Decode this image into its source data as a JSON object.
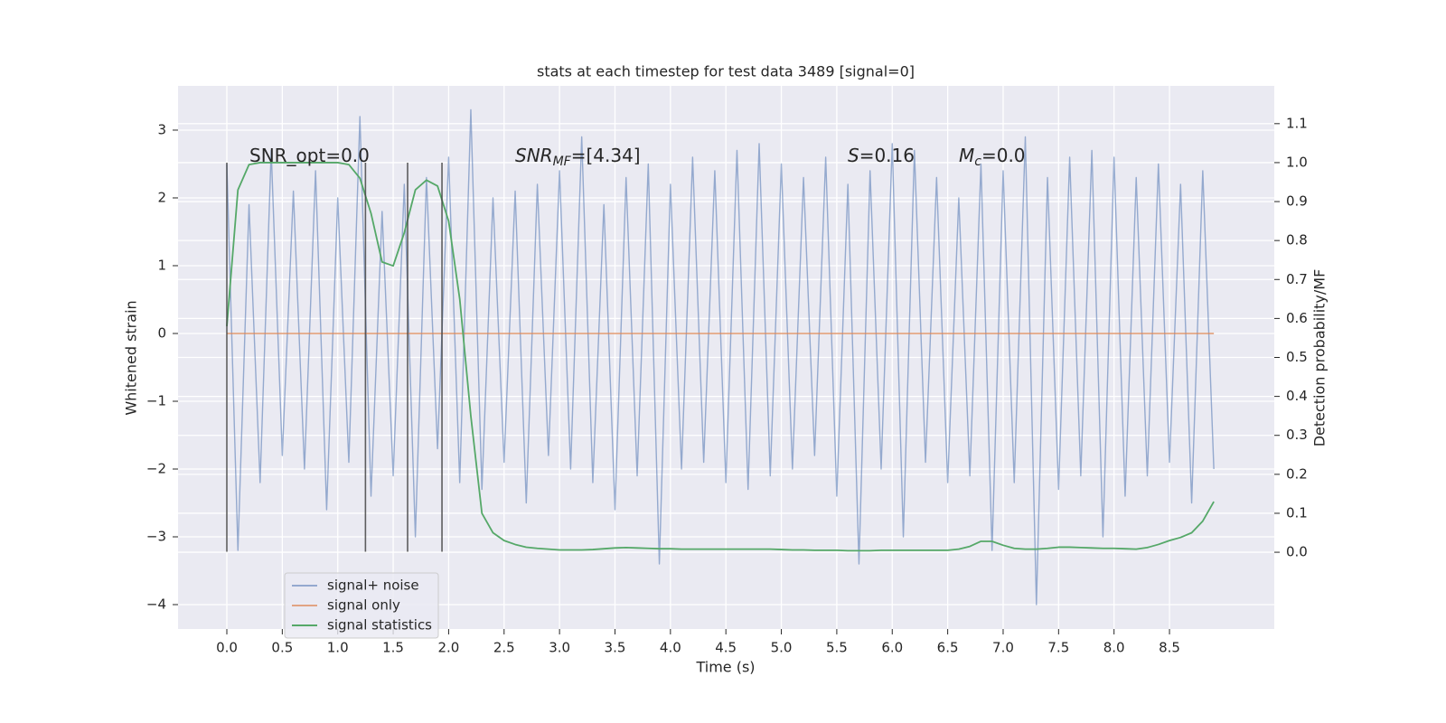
{
  "chart_data": {
    "type": "line",
    "title": "stats at each timestep for test data 3489 [signal=0]",
    "xlabel": "Time (s)",
    "ylabel": "Whitened strain",
    "y2label": "Detection probability/MF",
    "x": [
      0.0,
      0.1,
      0.2,
      0.3,
      0.4,
      0.5,
      0.6,
      0.7,
      0.8,
      0.9,
      1.0,
      1.1,
      1.2,
      1.3,
      1.4,
      1.5,
      1.6,
      1.7,
      1.8,
      1.9,
      2.0,
      2.1,
      2.2,
      2.3,
      2.4,
      2.5,
      2.6,
      2.7,
      2.8,
      2.9,
      3.0,
      3.1,
      3.2,
      3.3,
      3.4,
      3.5,
      3.6,
      3.7,
      3.8,
      3.9,
      4.0,
      4.1,
      4.2,
      4.3,
      4.4,
      4.5,
      4.6,
      4.7,
      4.8,
      4.9,
      5.0,
      5.1,
      5.2,
      5.3,
      5.4,
      5.5,
      5.6,
      5.7,
      5.8,
      5.9,
      6.0,
      6.1,
      6.2,
      6.3,
      6.4,
      6.5,
      6.6,
      6.7,
      6.8,
      6.9,
      7.0,
      7.1,
      7.2,
      7.3,
      7.4,
      7.5,
      7.6,
      7.7,
      7.8,
      7.9,
      8.0,
      8.1,
      8.2,
      8.3,
      8.4,
      8.5,
      8.6,
      8.7,
      8.8,
      8.9
    ],
    "series": [
      {
        "name": "signal+ noise",
        "color": "#4c72b0",
        "values": [
          2.5,
          -3.2,
          1.9,
          -2.2,
          2.7,
          -1.8,
          2.1,
          -2.0,
          2.4,
          -2.6,
          2.0,
          -1.9,
          3.2,
          -2.4,
          1.8,
          -2.1,
          2.2,
          -3.0,
          2.3,
          -1.7,
          2.6,
          -2.2,
          3.3,
          -2.3,
          2.0,
          -1.9,
          2.1,
          -2.5,
          2.2,
          -1.8,
          2.4,
          -2.0,
          2.9,
          -2.2,
          1.9,
          -2.6,
          2.3,
          -2.1,
          2.5,
          -3.4,
          2.2,
          -2.0,
          2.6,
          -1.9,
          2.4,
          -2.2,
          2.7,
          -2.3,
          2.8,
          -2.1,
          2.5,
          -2.0,
          2.3,
          -1.8,
          2.6,
          -2.4,
          2.2,
          -3.4,
          2.4,
          -2.0,
          2.8,
          -3.0,
          2.7,
          -1.9,
          2.3,
          -2.2,
          2.0,
          -2.1,
          2.5,
          -3.2,
          2.4,
          -2.2,
          2.9,
          -4.0,
          2.3,
          -2.3,
          2.6,
          -2.1,
          2.7,
          -3.0,
          2.6,
          -2.4,
          2.3,
          -2.1,
          2.5,
          -1.9,
          2.2,
          -2.5,
          2.4,
          -2.0
        ]
      },
      {
        "name": "signal only",
        "color": "#dd8452",
        "values": [
          0,
          0,
          0,
          0,
          0,
          0,
          0,
          0,
          0,
          0,
          0,
          0,
          0,
          0,
          0,
          0,
          0,
          0,
          0,
          0,
          0,
          0,
          0,
          0,
          0,
          0,
          0,
          0,
          0,
          0,
          0,
          0,
          0,
          0,
          0,
          0,
          0,
          0,
          0,
          0,
          0,
          0,
          0,
          0,
          0,
          0,
          0,
          0,
          0,
          0,
          0,
          0,
          0,
          0,
          0,
          0,
          0,
          0,
          0,
          0,
          0,
          0,
          0,
          0,
          0,
          0,
          0,
          0,
          0,
          0,
          0,
          0,
          0,
          0,
          0,
          0,
          0,
          0,
          0,
          0,
          0,
          0,
          0,
          0,
          0,
          0,
          0,
          0,
          0,
          0
        ]
      },
      {
        "name": "signal statistics",
        "color": "#55a868",
        "axis": "y2",
        "values": [
          0.58,
          0.93,
          0.995,
          1.0,
          1.0,
          1.0,
          1.0,
          1.0,
          1.0,
          1.0,
          1.0,
          0.995,
          0.96,
          0.87,
          0.745,
          0.735,
          0.82,
          0.93,
          0.955,
          0.94,
          0.85,
          0.65,
          0.35,
          0.1,
          0.05,
          0.03,
          0.02,
          0.013,
          0.01,
          0.008,
          0.006,
          0.006,
          0.006,
          0.007,
          0.009,
          0.011,
          0.012,
          0.011,
          0.01,
          0.009,
          0.009,
          0.008,
          0.008,
          0.008,
          0.008,
          0.008,
          0.008,
          0.008,
          0.008,
          0.008,
          0.007,
          0.006,
          0.006,
          0.005,
          0.005,
          0.005,
          0.004,
          0.004,
          0.004,
          0.005,
          0.005,
          0.005,
          0.005,
          0.005,
          0.005,
          0.005,
          0.008,
          0.015,
          0.028,
          0.028,
          0.018,
          0.01,
          0.008,
          0.008,
          0.01,
          0.013,
          0.013,
          0.012,
          0.011,
          0.01,
          0.01,
          0.009,
          0.008,
          0.012,
          0.02,
          0.03,
          0.038,
          0.05,
          0.08,
          0.13
        ]
      }
    ],
    "vlines": {
      "color": "#444444",
      "x": [
        0.0,
        1.25,
        1.63,
        1.94
      ],
      "ymin": -3.22,
      "ymax": 2.52
    },
    "annotations": [
      [
        {
          "text": "SNR_opt=0.0"
        }
      ],
      [
        {
          "text": "SNR",
          "italic": true
        },
        {
          "text": "MF",
          "italic": true,
          "sub": true
        },
        {
          "text": "=[4.34]"
        }
      ],
      [
        {
          "text": "S",
          "italic": true
        },
        {
          "text": "=0.16"
        }
      ],
      [
        {
          "text": "M",
          "italic": true
        },
        {
          "text": "c",
          "italic": true,
          "sub": true
        },
        {
          "text": "=0.0"
        }
      ]
    ],
    "xlim": [
      -0.44,
      9.445
    ],
    "xticks": [
      {
        "value": 0,
        "label": "0.0"
      },
      0.5,
      {
        "value": 1,
        "label": "1.0"
      },
      1.5,
      {
        "value": 2,
        "label": "2.0"
      },
      2.5,
      {
        "value": 3,
        "label": "3.0"
      },
      3.5,
      {
        "value": 4,
        "label": "4.0"
      },
      4.5,
      {
        "value": 5,
        "label": "5.0"
      },
      5.5,
      {
        "value": 6,
        "label": "6.0"
      },
      6.5,
      {
        "value": 7,
        "label": "7.0"
      },
      7.5,
      {
        "value": 8,
        "label": "8.0"
      },
      8.5
    ],
    "ylim": [
      -4.36,
      3.653
    ],
    "yticks": [
      {
        "value": -4,
        "label": "−4"
      },
      {
        "value": -3,
        "label": "−3"
      },
      {
        "value": -2,
        "label": "−2"
      },
      {
        "value": -1,
        "label": "−1"
      },
      0,
      1,
      2,
      3
    ],
    "y2lim": [
      -0.197,
      1.197
    ],
    "y2ticks": [
      {
        "value": 0,
        "label": "0.0"
      },
      0.1,
      0.2,
      0.3,
      0.4,
      0.5,
      0.6,
      0.7,
      0.8,
      0.9,
      {
        "value": 1,
        "label": "1.0"
      },
      1.1
    ],
    "grid": true,
    "legend": "lower left"
  }
}
